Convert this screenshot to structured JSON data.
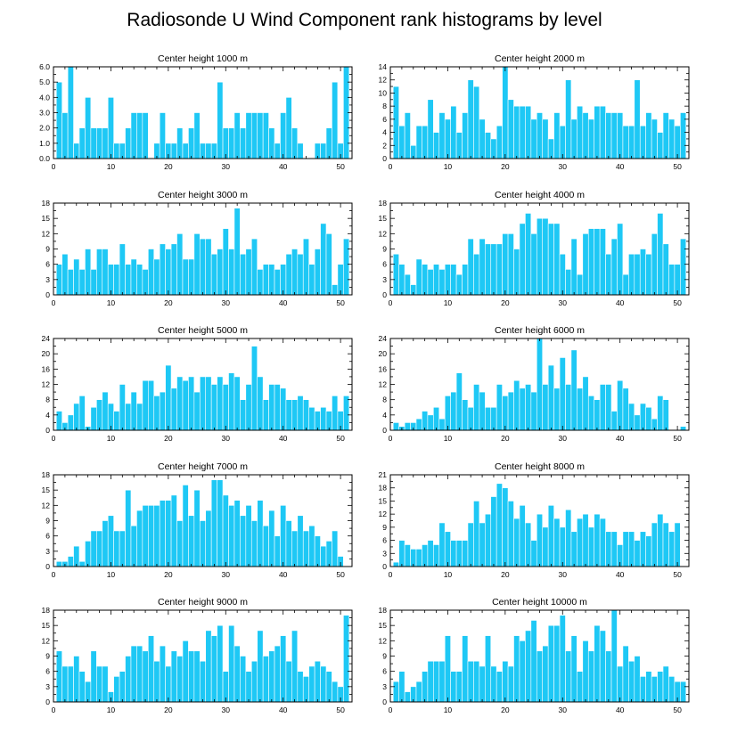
{
  "title": "Radiosonde U Wind Component rank histograms by level",
  "colors": {
    "bar": "#1ec8f5",
    "axis": "#000000",
    "background": "#ffffff"
  },
  "chart_data": [
    {
      "type": "bar",
      "title": "Center height 1000 m",
      "x": [
        1,
        2,
        3,
        4,
        5,
        6,
        7,
        8,
        9,
        10,
        11,
        12,
        13,
        14,
        15,
        16,
        17,
        18,
        19,
        20,
        21,
        22,
        23,
        24,
        25,
        26,
        27,
        28,
        29,
        30,
        31,
        32,
        33,
        34,
        35,
        36,
        37,
        38,
        39,
        40,
        41,
        42,
        43,
        44,
        45,
        46,
        47,
        48,
        49,
        50,
        51
      ],
      "values": [
        5,
        3,
        6,
        1,
        2,
        4,
        2,
        2,
        2,
        4,
        1,
        1,
        2,
        3,
        3,
        3,
        0,
        1,
        3,
        1,
        1,
        2,
        1,
        2,
        3,
        1,
        1,
        1,
        5,
        2,
        2,
        3,
        2,
        3,
        3,
        3,
        3,
        2,
        1,
        3,
        4,
        2,
        1,
        0,
        0,
        1,
        1,
        2,
        5,
        1,
        6
      ],
      "xlim": [
        0,
        52
      ],
      "ylim": [
        0,
        6
      ],
      "yticks": [
        0,
        1,
        2,
        3,
        4,
        5,
        6
      ],
      "ytick_labels": [
        "0.0",
        "1.0",
        "2.0",
        "3.0",
        "4.0",
        "5.0",
        "6.0"
      ],
      "xticks": [
        0,
        10,
        20,
        30,
        40,
        50
      ],
      "xtick_labels": [
        "0",
        "10",
        "20",
        "30",
        "40",
        "50"
      ]
    },
    {
      "type": "bar",
      "title": "Center height 2000 m",
      "x": [
        1,
        2,
        3,
        4,
        5,
        6,
        7,
        8,
        9,
        10,
        11,
        12,
        13,
        14,
        15,
        16,
        17,
        18,
        19,
        20,
        21,
        22,
        23,
        24,
        25,
        26,
        27,
        28,
        29,
        30,
        31,
        32,
        33,
        34,
        35,
        36,
        37,
        38,
        39,
        40,
        41,
        42,
        43,
        44,
        45,
        46,
        47,
        48,
        49,
        50,
        51
      ],
      "values": [
        11,
        5,
        7,
        2,
        5,
        5,
        9,
        4,
        7,
        6,
        8,
        4,
        7,
        12,
        11,
        6,
        4,
        3,
        5,
        14,
        9,
        8,
        8,
        8,
        6,
        7,
        6,
        3,
        7,
        5,
        12,
        6,
        8,
        7,
        6,
        8,
        8,
        7,
        7,
        7,
        5,
        5,
        12,
        5,
        7,
        6,
        4,
        7,
        6,
        5,
        7
      ],
      "xlim": [
        0,
        52
      ],
      "ylim": [
        0,
        14
      ],
      "yticks": [
        0,
        2,
        4,
        6,
        8,
        10,
        12,
        14
      ],
      "ytick_labels": [
        "0",
        "2",
        "4",
        "6",
        "8",
        "10",
        "12",
        "14"
      ],
      "xticks": [
        0,
        10,
        20,
        30,
        40,
        50
      ],
      "xtick_labels": [
        "0",
        "10",
        "20",
        "30",
        "40",
        "50"
      ]
    },
    {
      "type": "bar",
      "title": "Center height 3000 m",
      "x": [
        1,
        2,
        3,
        4,
        5,
        6,
        7,
        8,
        9,
        10,
        11,
        12,
        13,
        14,
        15,
        16,
        17,
        18,
        19,
        20,
        21,
        22,
        23,
        24,
        25,
        26,
        27,
        28,
        29,
        30,
        31,
        32,
        33,
        34,
        35,
        36,
        37,
        38,
        39,
        40,
        41,
        42,
        43,
        44,
        45,
        46,
        47,
        48,
        49,
        50,
        51
      ],
      "values": [
        6,
        8,
        5,
        7,
        5,
        9,
        5,
        9,
        9,
        6,
        6,
        10,
        6,
        7,
        6,
        5,
        9,
        7,
        10,
        9,
        10,
        12,
        7,
        7,
        12,
        11,
        11,
        8,
        9,
        13,
        9,
        17,
        8,
        9,
        11,
        5,
        6,
        6,
        5,
        6,
        8,
        9,
        8,
        11,
        6,
        9,
        14,
        12,
        2,
        6,
        11
      ],
      "xlim": [
        0,
        52
      ],
      "ylim": [
        0,
        18
      ],
      "yticks": [
        0,
        3,
        6,
        9,
        12,
        15,
        18
      ],
      "ytick_labels": [
        "0",
        "3",
        "6",
        "9",
        "12",
        "15",
        "18"
      ],
      "xticks": [
        0,
        10,
        20,
        30,
        40,
        50
      ],
      "xtick_labels": [
        "0",
        "10",
        "20",
        "30",
        "40",
        "50"
      ]
    },
    {
      "type": "bar",
      "title": "Center height 4000 m",
      "x": [
        1,
        2,
        3,
        4,
        5,
        6,
        7,
        8,
        9,
        10,
        11,
        12,
        13,
        14,
        15,
        16,
        17,
        18,
        19,
        20,
        21,
        22,
        23,
        24,
        25,
        26,
        27,
        28,
        29,
        30,
        31,
        32,
        33,
        34,
        35,
        36,
        37,
        38,
        39,
        40,
        41,
        42,
        43,
        44,
        45,
        46,
        47,
        48,
        49,
        50,
        51
      ],
      "values": [
        8,
        6,
        4,
        2,
        7,
        6,
        5,
        6,
        5,
        6,
        6,
        4,
        6,
        11,
        8,
        11,
        10,
        10,
        10,
        12,
        12,
        9,
        14,
        16,
        12,
        15,
        15,
        14,
        14,
        8,
        5,
        11,
        4,
        12,
        13,
        13,
        13,
        8,
        11,
        14,
        4,
        8,
        8,
        9,
        8,
        12,
        16,
        10,
        6,
        6,
        11
      ],
      "xlim": [
        0,
        52
      ],
      "ylim": [
        0,
        18
      ],
      "yticks": [
        0,
        3,
        6,
        9,
        12,
        15,
        18
      ],
      "ytick_labels": [
        "0",
        "3",
        "6",
        "9",
        "12",
        "15",
        "18"
      ],
      "xticks": [
        0,
        10,
        20,
        30,
        40,
        50
      ],
      "xtick_labels": [
        "0",
        "10",
        "20",
        "30",
        "40",
        "50"
      ]
    },
    {
      "type": "bar",
      "title": "Center height 5000 m",
      "x": [
        1,
        2,
        3,
        4,
        5,
        6,
        7,
        8,
        9,
        10,
        11,
        12,
        13,
        14,
        15,
        16,
        17,
        18,
        19,
        20,
        21,
        22,
        23,
        24,
        25,
        26,
        27,
        28,
        29,
        30,
        31,
        32,
        33,
        34,
        35,
        36,
        37,
        38,
        39,
        40,
        41,
        42,
        43,
        44,
        45,
        46,
        47,
        48,
        49,
        50,
        51
      ],
      "values": [
        5,
        2,
        4,
        7,
        9,
        1,
        6,
        8,
        10,
        7,
        5,
        12,
        7,
        10,
        7,
        13,
        13,
        9,
        10,
        17,
        11,
        14,
        13,
        14,
        10,
        14,
        14,
        12,
        14,
        12,
        15,
        14,
        8,
        12,
        22,
        14,
        8,
        12,
        12,
        11,
        8,
        8,
        9,
        8,
        6,
        5,
        6,
        5,
        9,
        5,
        9
      ],
      "xlim": [
        0,
        52
      ],
      "ylim": [
        0,
        24
      ],
      "yticks": [
        0,
        4,
        8,
        12,
        16,
        20,
        24
      ],
      "ytick_labels": [
        "0",
        "4",
        "8",
        "12",
        "16",
        "20",
        "24"
      ],
      "xticks": [
        0,
        10,
        20,
        30,
        40,
        50
      ],
      "xtick_labels": [
        "0",
        "10",
        "20",
        "30",
        "40",
        "50"
      ]
    },
    {
      "type": "bar",
      "title": "Center height 6000 m",
      "x": [
        1,
        2,
        3,
        4,
        5,
        6,
        7,
        8,
        9,
        10,
        11,
        12,
        13,
        14,
        15,
        16,
        17,
        18,
        19,
        20,
        21,
        22,
        23,
        24,
        25,
        26,
        27,
        28,
        29,
        30,
        31,
        32,
        33,
        34,
        35,
        36,
        37,
        38,
        39,
        40,
        41,
        42,
        43,
        44,
        45,
        46,
        47,
        48,
        49,
        50,
        51
      ],
      "values": [
        2,
        1,
        2,
        2,
        3,
        5,
        4,
        6,
        3,
        9,
        10,
        15,
        8,
        6,
        12,
        10,
        6,
        6,
        12,
        9,
        10,
        13,
        11,
        12,
        10,
        24,
        12,
        17,
        11,
        19,
        12,
        21,
        11,
        14,
        9,
        8,
        12,
        12,
        5,
        13,
        11,
        7,
        4,
        7,
        6,
        3,
        9,
        8,
        0,
        0,
        1
      ],
      "xlim": [
        0,
        52
      ],
      "ylim": [
        0,
        24
      ],
      "yticks": [
        0,
        4,
        8,
        12,
        16,
        20,
        24
      ],
      "ytick_labels": [
        "0",
        "4",
        "8",
        "12",
        "16",
        "20",
        "24"
      ],
      "xticks": [
        0,
        10,
        20,
        30,
        40,
        50
      ],
      "xtick_labels": [
        "0",
        "10",
        "20",
        "30",
        "40",
        "50"
      ]
    },
    {
      "type": "bar",
      "title": "Center height 7000 m",
      "x": [
        1,
        2,
        3,
        4,
        5,
        6,
        7,
        8,
        9,
        10,
        11,
        12,
        13,
        14,
        15,
        16,
        17,
        18,
        19,
        20,
        21,
        22,
        23,
        24,
        25,
        26,
        27,
        28,
        29,
        30,
        31,
        32,
        33,
        34,
        35,
        36,
        37,
        38,
        39,
        40,
        41,
        42,
        43,
        44,
        45,
        46,
        47,
        48,
        49,
        50,
        51
      ],
      "values": [
        1,
        1,
        2,
        4,
        1,
        5,
        7,
        7,
        9,
        10,
        7,
        7,
        15,
        8,
        11,
        12,
        12,
        12,
        13,
        13,
        14,
        9,
        16,
        10,
        15,
        9,
        11,
        17,
        17,
        14,
        12,
        13,
        10,
        12,
        9,
        13,
        8,
        11,
        6,
        12,
        9,
        7,
        10,
        7,
        8,
        6,
        4,
        5,
        7,
        2,
        0
      ],
      "xlim": [
        0,
        52
      ],
      "ylim": [
        0,
        18
      ],
      "yticks": [
        0,
        3,
        6,
        9,
        12,
        15,
        18
      ],
      "ytick_labels": [
        "0",
        "3",
        "6",
        "9",
        "12",
        "15",
        "18"
      ],
      "xticks": [
        0,
        10,
        20,
        30,
        40,
        50
      ],
      "xtick_labels": [
        "0",
        "10",
        "20",
        "30",
        "40",
        "50"
      ]
    },
    {
      "type": "bar",
      "title": "Center height 8000 m",
      "x": [
        1,
        2,
        3,
        4,
        5,
        6,
        7,
        8,
        9,
        10,
        11,
        12,
        13,
        14,
        15,
        16,
        17,
        18,
        19,
        20,
        21,
        22,
        23,
        24,
        25,
        26,
        27,
        28,
        29,
        30,
        31,
        32,
        33,
        34,
        35,
        36,
        37,
        38,
        39,
        40,
        41,
        42,
        43,
        44,
        45,
        46,
        47,
        48,
        49,
        50,
        51
      ],
      "values": [
        1,
        6,
        5,
        4,
        4,
        5,
        6,
        5,
        10,
        8,
        6,
        6,
        6,
        10,
        15,
        10,
        12,
        16,
        19,
        18,
        15,
        11,
        14,
        10,
        6,
        12,
        9,
        14,
        11,
        9,
        13,
        8,
        11,
        12,
        9,
        12,
        11,
        8,
        8,
        5,
        8,
        8,
        6,
        8,
        7,
        10,
        12,
        10,
        8,
        10,
        0
      ],
      "xlim": [
        0,
        52
      ],
      "ylim": [
        0,
        21
      ],
      "yticks": [
        0,
        3,
        6,
        9,
        12,
        15,
        18,
        21
      ],
      "ytick_labels": [
        "0",
        "3",
        "6",
        "9",
        "12",
        "15",
        "18",
        "21"
      ],
      "xticks": [
        0,
        10,
        20,
        30,
        40,
        50
      ],
      "xtick_labels": [
        "0",
        "10",
        "20",
        "30",
        "40",
        "50"
      ]
    },
    {
      "type": "bar",
      "title": "Center height 9000 m",
      "x": [
        1,
        2,
        3,
        4,
        5,
        6,
        7,
        8,
        9,
        10,
        11,
        12,
        13,
        14,
        15,
        16,
        17,
        18,
        19,
        20,
        21,
        22,
        23,
        24,
        25,
        26,
        27,
        28,
        29,
        30,
        31,
        32,
        33,
        34,
        35,
        36,
        37,
        38,
        39,
        40,
        41,
        42,
        43,
        44,
        45,
        46,
        47,
        48,
        49,
        50,
        51
      ],
      "values": [
        10,
        7,
        7,
        9,
        6,
        4,
        10,
        7,
        7,
        2,
        5,
        6,
        9,
        11,
        11,
        10,
        13,
        8,
        11,
        7,
        10,
        9,
        12,
        10,
        10,
        8,
        14,
        13,
        15,
        6,
        15,
        11,
        9,
        6,
        8,
        14,
        9,
        10,
        11,
        13,
        8,
        14,
        6,
        5,
        7,
        8,
        7,
        6,
        4,
        3,
        17
      ],
      "xlim": [
        0,
        52
      ],
      "ylim": [
        0,
        18
      ],
      "yticks": [
        0,
        3,
        6,
        9,
        12,
        15,
        18
      ],
      "ytick_labels": [
        "0",
        "3",
        "6",
        "9",
        "12",
        "15",
        "18"
      ],
      "xticks": [
        0,
        10,
        20,
        30,
        40,
        50
      ],
      "xtick_labels": [
        "0",
        "10",
        "20",
        "30",
        "40",
        "50"
      ]
    },
    {
      "type": "bar",
      "title": "Center height 10000 m",
      "x": [
        1,
        2,
        3,
        4,
        5,
        6,
        7,
        8,
        9,
        10,
        11,
        12,
        13,
        14,
        15,
        16,
        17,
        18,
        19,
        20,
        21,
        22,
        23,
        24,
        25,
        26,
        27,
        28,
        29,
        30,
        31,
        32,
        33,
        34,
        35,
        36,
        37,
        38,
        39,
        40,
        41,
        42,
        43,
        44,
        45,
        46,
        47,
        48,
        49,
        50,
        51
      ],
      "values": [
        4,
        6,
        2,
        3,
        4,
        6,
        8,
        8,
        8,
        13,
        6,
        6,
        13,
        8,
        8,
        7,
        13,
        7,
        6,
        8,
        7,
        13,
        12,
        14,
        16,
        10,
        11,
        15,
        15,
        17,
        10,
        13,
        6,
        12,
        10,
        15,
        14,
        10,
        18,
        7,
        11,
        8,
        9,
        5,
        6,
        5,
        6,
        7,
        5,
        4,
        4
      ],
      "xlim": [
        0,
        52
      ],
      "ylim": [
        0,
        18
      ],
      "yticks": [
        0,
        3,
        6,
        9,
        12,
        15,
        18
      ],
      "ytick_labels": [
        "0",
        "3",
        "6",
        "9",
        "12",
        "15",
        "18"
      ],
      "xticks": [
        0,
        10,
        20,
        30,
        40,
        50
      ],
      "xtick_labels": [
        "0",
        "10",
        "20",
        "30",
        "40",
        "50"
      ]
    }
  ]
}
